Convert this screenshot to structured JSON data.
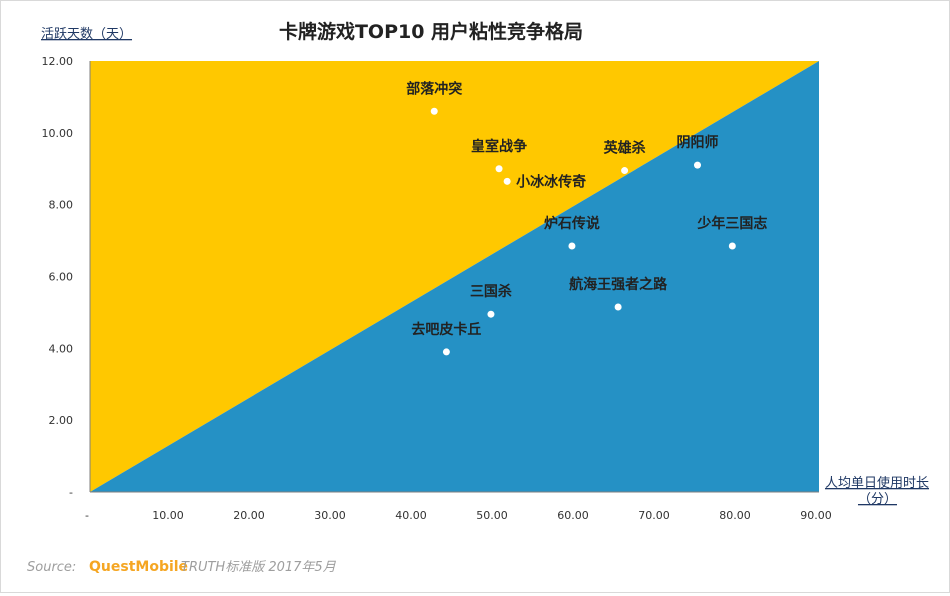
{
  "chart_data": {
    "type": "scatter",
    "title": "卡牌游戏TOP10 用户粘性竞争格局",
    "xlabel_line1": "人均单日使用时长",
    "xlabel_line2": "（分）",
    "ylabel": "活跃天数（天）",
    "xlim": [
      0,
      90
    ],
    "ylim": [
      0,
      12
    ],
    "x_ticks": [
      {
        "value": 0,
        "label": "-"
      },
      {
        "value": 10,
        "label": "10.00"
      },
      {
        "value": 20,
        "label": "20.00"
      },
      {
        "value": 30,
        "label": "30.00"
      },
      {
        "value": 40,
        "label": "40.00"
      },
      {
        "value": 50,
        "label": "50.00"
      },
      {
        "value": 60,
        "label": "60.00"
      },
      {
        "value": 70,
        "label": "70.00"
      },
      {
        "value": 80,
        "label": "80.00"
      },
      {
        "value": 90,
        "label": "90.00"
      }
    ],
    "y_ticks": [
      {
        "value": 0,
        "label": "-"
      },
      {
        "value": 2,
        "label": "2.00"
      },
      {
        "value": 4,
        "label": "4.00"
      },
      {
        "value": 6,
        "label": "6.00"
      },
      {
        "value": 8,
        "label": "8.00"
      },
      {
        "value": 10,
        "label": "10.00"
      },
      {
        "value": 12,
        "label": "12.00"
      }
    ],
    "regions": {
      "upper_color": "#ffc800",
      "lower_color": "#2591c5"
    },
    "points": [
      {
        "name": "部落冲突",
        "x": 42.5,
        "y": 10.6,
        "label_pos": "above"
      },
      {
        "name": "皇室战争",
        "x": 50.5,
        "y": 9.0,
        "label_pos": "above"
      },
      {
        "name": "小冰冰传奇",
        "x": 51.5,
        "y": 8.65,
        "label_pos": "right"
      },
      {
        "name": "英雄杀",
        "x": 66.0,
        "y": 8.95,
        "label_pos": "above"
      },
      {
        "name": "阴阳师",
        "x": 75.0,
        "y": 9.1,
        "label_pos": "above"
      },
      {
        "name": "炉石传说",
        "x": 59.5,
        "y": 6.85,
        "label_pos": "above"
      },
      {
        "name": "少年三国志",
        "x": 79.3,
        "y": 6.85,
        "label_pos": "above"
      },
      {
        "name": "航海王强者之路",
        "x": 65.2,
        "y": 5.15,
        "label_pos": "above"
      },
      {
        "name": "三国杀",
        "x": 49.5,
        "y": 4.95,
        "label_pos": "above"
      },
      {
        "name": "去吧皮卡丘",
        "x": 44.0,
        "y": 3.9,
        "label_pos": "above"
      }
    ]
  },
  "source": {
    "prefix": "Source:",
    "brand": "QuestMobile",
    "rest": "TRUTH标准版 2017年5月"
  }
}
